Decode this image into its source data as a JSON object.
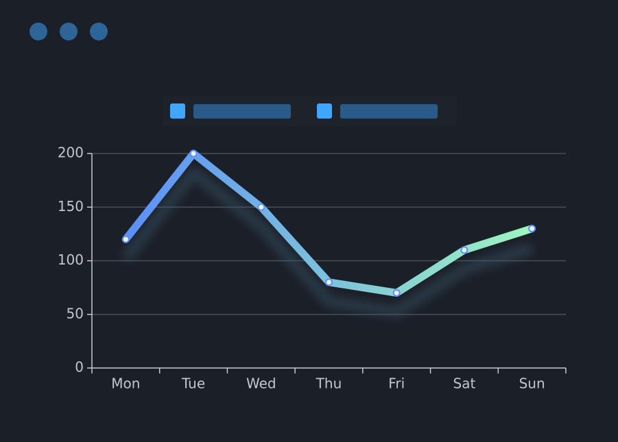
{
  "chart_data": {
    "type": "line",
    "categories": [
      "Mon",
      "Tue",
      "Wed",
      "Thu",
      "Fri",
      "Sat",
      "Sun"
    ],
    "values": [
      120,
      200,
      150,
      80,
      70,
      110,
      130
    ],
    "gradient": [
      "#5b8ff9",
      "#9ef5c0"
    ],
    "ylim": [
      0,
      200
    ],
    "yticks": [
      0,
      50,
      100,
      150,
      200
    ],
    "grid": true
  }
}
